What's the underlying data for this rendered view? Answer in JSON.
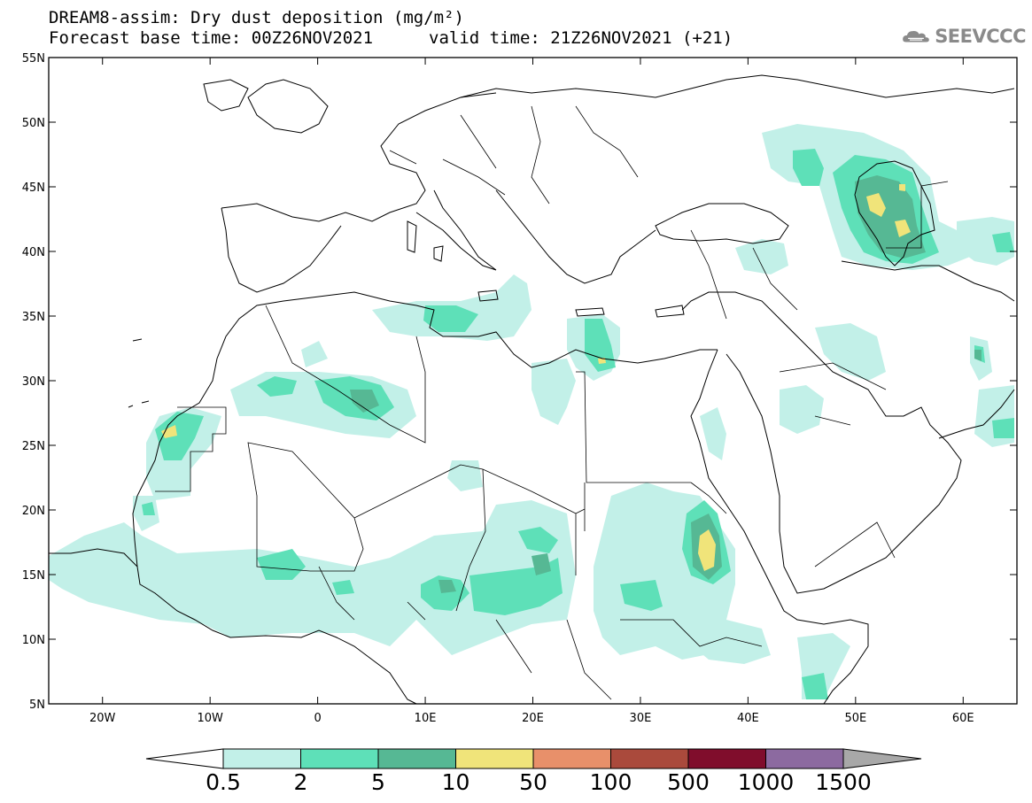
{
  "title": {
    "line1": "DREAM8-assim: Dry dust deposition (mg/m²)",
    "line2_left": "Forecast base time: 00Z26NOV2021",
    "line2_right": "valid time: 21Z26NOV2021 (+21)"
  },
  "logo": {
    "text": "SEEVCCC",
    "icon": "cloud-logo-icon"
  },
  "map": {
    "lon_range": [
      -25,
      65
    ],
    "lat_range": [
      5,
      55
    ],
    "lon_ticks": [
      "20W",
      "10W",
      "0",
      "10E",
      "20E",
      "30E",
      "40E",
      "50E",
      "60E"
    ],
    "lat_ticks": [
      "55N",
      "50N",
      "45N",
      "40N",
      "35N",
      "30N",
      "25N",
      "20N",
      "15N",
      "10N",
      "5N"
    ]
  },
  "colorbar": {
    "labels": [
      "0.5",
      "2",
      "5",
      "10",
      "50",
      "100",
      "500",
      "1000",
      "1500"
    ],
    "colors": [
      "#c2f0e8",
      "#5ee0b8",
      "#56b894",
      "#f0e47a",
      "#e8906a",
      "#aa4a3c",
      "#800d2c",
      "#8c6aa0",
      "#a8a8a8"
    ]
  }
}
